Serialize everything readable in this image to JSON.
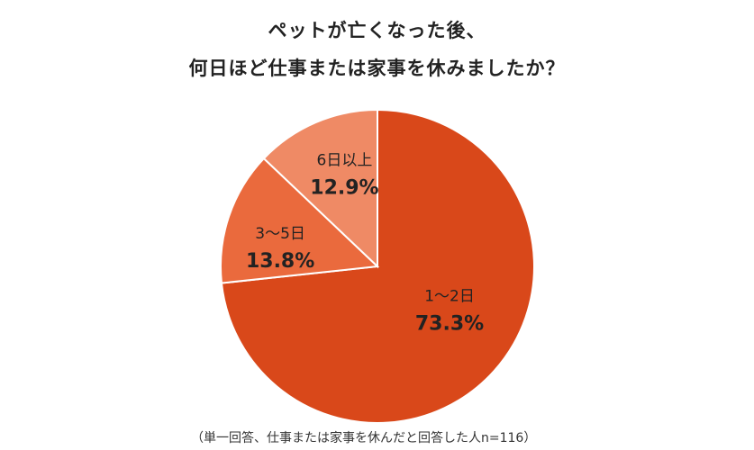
{
  "chart_data": {
    "type": "pie",
    "title_lines": [
      "ペットが亡くなった後、",
      "何日ほど仕事または家事を休みましたか？"
    ],
    "slices": [
      {
        "label": "1～2日",
        "value": 73.3,
        "value_label": "73.3%",
        "color": "#d9481a"
      },
      {
        "label": "3～5日",
        "value": 13.8,
        "value_label": "13.8%",
        "color": "#ea6a3d"
      },
      {
        "label": "6日以上",
        "value": 12.9,
        "value_label": "12.9%",
        "color": "#ef8a65"
      }
    ],
    "note": "（単一回答、仕事または家事を休んだと回答した人n=116）"
  }
}
